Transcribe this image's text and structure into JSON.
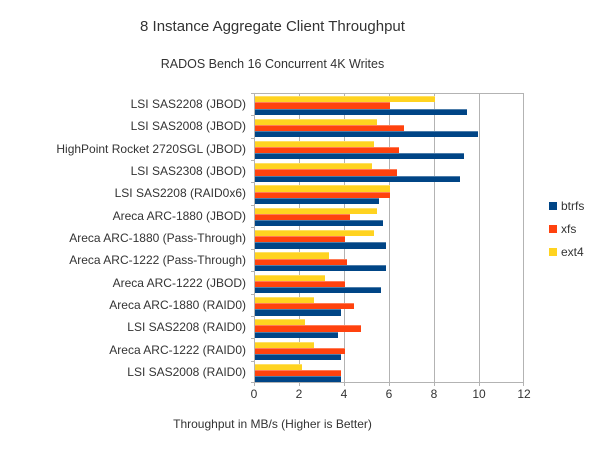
{
  "chart_data": {
    "type": "bar",
    "orientation": "horizontal",
    "title": "8 Instance Aggregate Client Throughput",
    "subtitle": "RADOS Bench 16 Concurrent 4K Writes",
    "xlabel": "Throughput in MB/s (Higher is Better)",
    "xlim": [
      0,
      12
    ],
    "xticks": [
      0,
      2,
      4,
      6,
      8,
      10,
      12
    ],
    "grid": true,
    "legend_position": "right",
    "categories": [
      "LSI SAS2208 (JBOD)",
      "LSI SAS2008 (JBOD)",
      "HighPoint Rocket 2720SGL (JBOD)",
      "LSI SAS2308 (JBOD)",
      "LSI SAS2208 (RAID0x6)",
      "Areca ARC-1880 (JBOD)",
      "Areca ARC-1880 (Pass-Through)",
      "Areca ARC-1222 (Pass-Through)",
      "Areca ARC-1222 (JBOD)",
      "Areca ARC-1880 (RAID0)",
      "LSI SAS2208 (RAID0)",
      "Areca ARC-1222 (RAID0)",
      "LSI SAS2008 (RAID0)"
    ],
    "series": [
      {
        "name": "btrfs",
        "color": "#004586",
        "values": [
          9.4,
          9.9,
          9.3,
          9.1,
          5.5,
          5.7,
          5.8,
          5.8,
          5.6,
          3.8,
          3.7,
          3.8,
          3.8
        ]
      },
      {
        "name": "xfs",
        "color": "#FF420E",
        "values": [
          6.0,
          6.6,
          6.4,
          6.3,
          6.0,
          4.2,
          4.0,
          4.1,
          4.0,
          4.4,
          4.7,
          4.0,
          3.8
        ]
      },
      {
        "name": "ext4",
        "color": "#FFD320",
        "values": [
          8.0,
          5.4,
          5.3,
          5.2,
          6.0,
          5.4,
          5.3,
          3.3,
          3.1,
          2.6,
          2.2,
          2.6,
          2.1
        ]
      }
    ],
    "colors": {
      "grid": "#b3b3b3",
      "text": "#333333",
      "background": "#ffffff"
    }
  }
}
